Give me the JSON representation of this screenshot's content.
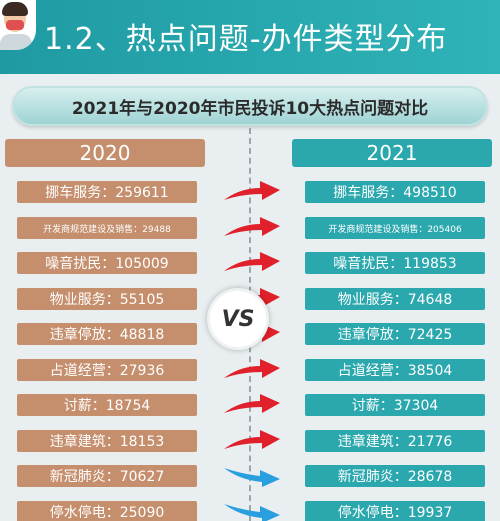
{
  "header": {
    "title": "1.2、热点问题-办件类型分布"
  },
  "chart_data": {
    "type": "table",
    "title": "2021年与2020年市民投诉10大热点问题对比",
    "vs_label": "VS",
    "series": [
      {
        "name": "2020",
        "items": [
          {
            "label": "挪车服务：259611",
            "category": "挪车服务",
            "value": 259611
          },
          {
            "label": "开发商规范建设及销售：29488",
            "category": "开发商规范建设及销售",
            "value": 29488
          },
          {
            "label": "噪音扰民：105009",
            "category": "噪音扰民",
            "value": 105009
          },
          {
            "label": "物业服务：55105",
            "category": "物业服务",
            "value": 55105
          },
          {
            "label": "违章停放：48818",
            "category": "违章停放",
            "value": 48818
          },
          {
            "label": "占道经营：27936",
            "category": "占道经营",
            "value": 27936
          },
          {
            "label": "讨薪：18754",
            "category": "讨薪",
            "value": 18754
          },
          {
            "label": "违章建筑：18153",
            "category": "违章建筑",
            "value": 18153
          },
          {
            "label": "新冠肺炎：70627",
            "category": "新冠肺炎",
            "value": 70627
          },
          {
            "label": "停水停电：25090",
            "category": "停水停电",
            "value": 25090
          }
        ]
      },
      {
        "name": "2021",
        "items": [
          {
            "label": "挪车服务：498510",
            "category": "挪车服务",
            "value": 498510
          },
          {
            "label": "开发商规范建设及销售：205406",
            "category": "开发商规范建设及销售",
            "value": 205406
          },
          {
            "label": "噪音扰民：119853",
            "category": "噪音扰民",
            "value": 119853
          },
          {
            "label": "物业服务：74648",
            "category": "物业服务",
            "value": 74648
          },
          {
            "label": "违章停放：72425",
            "category": "违章停放",
            "value": 72425
          },
          {
            "label": "占道经营：38504",
            "category": "占道经营",
            "value": 38504
          },
          {
            "label": "讨薪：37304",
            "category": "讨薪",
            "value": 37304
          },
          {
            "label": "违章建筑：21776",
            "category": "违章建筑",
            "value": 21776
          },
          {
            "label": "新冠肺炎：28678",
            "category": "新冠肺炎",
            "value": 28678
          },
          {
            "label": "停水停电：19937",
            "category": "停水停电",
            "value": 19937
          }
        ]
      }
    ],
    "trend": [
      "up",
      "up",
      "up",
      "up",
      "up",
      "up",
      "up",
      "up",
      "down",
      "down"
    ],
    "colors": {
      "left": "#c58e6c",
      "right": "#2aa8ae",
      "up": "#e0202a",
      "down": "#2a9fe0"
    }
  }
}
